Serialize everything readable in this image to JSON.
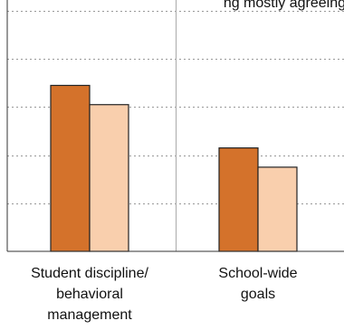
{
  "chart_data": {
    "type": "bar",
    "title_fragment": "ng mostly agreeing",
    "categories": [
      [
        "Student discipline/",
        "behavioral",
        "management"
      ],
      [
        "School-wide",
        "goals"
      ]
    ],
    "series": [
      {
        "color": "#d4722b",
        "values": [
          69,
          43
        ]
      },
      {
        "color": "#f9cfad",
        "values": [
          61,
          35
        ]
      }
    ],
    "ylim": [
      0,
      100
    ],
    "grid": true,
    "gridlines": [
      20,
      40,
      60,
      80,
      100
    ],
    "category_divider": true
  }
}
